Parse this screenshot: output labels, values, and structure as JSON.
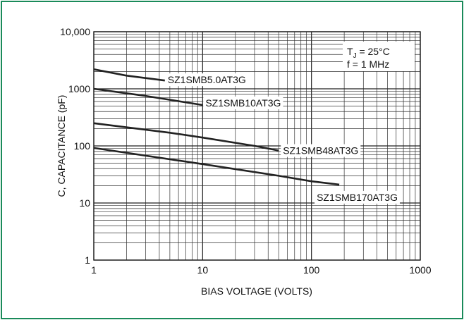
{
  "colors": {
    "border": "#1a8a5a",
    "grid": "#222222",
    "line": "#222222"
  },
  "chart_data": {
    "type": "line",
    "x_scale": "log",
    "y_scale": "log",
    "xlim": [
      1,
      1000
    ],
    "ylim": [
      1,
      10000
    ],
    "grid": true,
    "xlabel": "BIAS VOLTAGE (VOLTS)",
    "ylabel": "C, CAPACITANCE (pF)",
    "x_ticks": [
      {
        "value": 1,
        "label": "1"
      },
      {
        "value": 10,
        "label": "10"
      },
      {
        "value": 100,
        "label": "100"
      },
      {
        "value": 1000,
        "label": "1000"
      }
    ],
    "y_ticks": [
      {
        "value": 1,
        "label": "1"
      },
      {
        "value": 10,
        "label": "10"
      },
      {
        "value": 100,
        "label": "100"
      },
      {
        "value": 1000,
        "label": "1000"
      },
      {
        "value": 10000,
        "label": "10,000"
      }
    ],
    "annotation": {
      "tj_main": "T",
      "tj_sub": "J",
      "tj_rest": " = 25°C",
      "freq": "f = 1 MHz"
    },
    "series": [
      {
        "name": "SZ1SMB5.0AT3G",
        "x": [
          1,
          2,
          4.5
        ],
        "y": [
          2200,
          1700,
          1400
        ]
      },
      {
        "name": "SZ1SMB10AT3G",
        "x": [
          1,
          3,
          10
        ],
        "y": [
          1000,
          750,
          520
        ]
      },
      {
        "name": "SZ1SMB48AT3G",
        "x": [
          1,
          5,
          10,
          30,
          50
        ],
        "y": [
          250,
          170,
          140,
          100,
          83
        ]
      },
      {
        "name": "SZ1SMB170AT3G",
        "x": [
          1,
          10,
          50,
          100,
          180
        ],
        "y": [
          92,
          48,
          30,
          24,
          21
        ]
      }
    ]
  }
}
